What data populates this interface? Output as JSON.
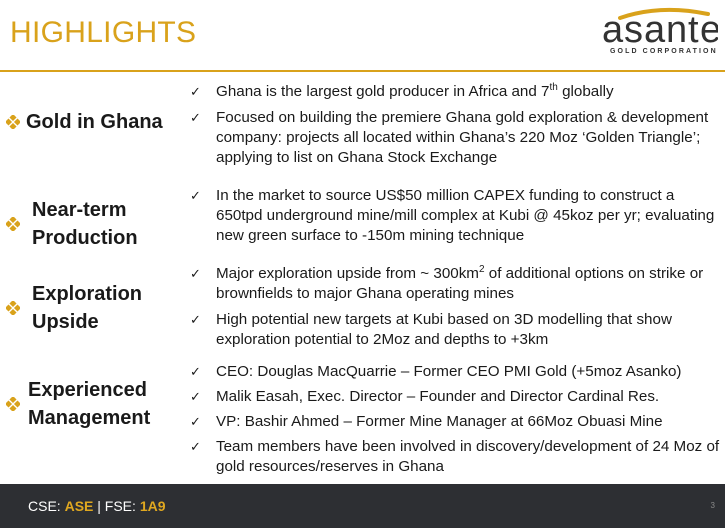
{
  "title": "HIGHLIGHTS",
  "logo": {
    "name": "asante",
    "subtitle": "GOLD CORPORATION"
  },
  "colors": {
    "accent": "#d9a21b",
    "footer_bg": "#2d2f33",
    "diamond": "#d9a21b"
  },
  "sections": [
    {
      "label_lines": [
        "Gold in Ghana"
      ],
      "bullets": [
        {
          "before": "Ghana is the largest gold producer in Africa and 7",
          "sup": "th",
          "after": " globally"
        },
        {
          "before": "Focused on building the premiere Ghana gold exploration & development company: projects all located within Ghana’s 220 Moz ‘Golden Triangle’; applying to list on Ghana Stock Exchange",
          "sup": "",
          "after": ""
        }
      ]
    },
    {
      "label_lines": [
        "Near-term",
        "Production"
      ],
      "bullets": [
        {
          "before": "In the market to source US$50 million CAPEX funding to construct a 650tpd underground mine/mill complex at Kubi @ 45koz per yr; evaluating new green surface to -150m  mining technique",
          "sup": "",
          "after": ""
        }
      ]
    },
    {
      "label_lines": [
        "Exploration",
        "Upside"
      ],
      "bullets": [
        {
          "before": "Major exploration upside from ~ 300km",
          "sup": "2",
          "after": " of additional options on strike or brownfields to major Ghana operating mines"
        },
        {
          "before": "High potential new targets at Kubi based on 3D modelling that show exploration potential to 2Moz  and depths to  +3km",
          "sup": "",
          "after": ""
        }
      ]
    },
    {
      "label_lines": [
        "Experienced",
        "Management"
      ],
      "bullets": [
        {
          "before": "CEO: Douglas MacQuarrie –  Former CEO PMI Gold (+5moz Asanko)",
          "sup": "",
          "after": ""
        },
        {
          "before": "Malik Easah, Exec. Director – Founder and Director Cardinal Res.",
          "sup": "",
          "after": ""
        },
        {
          "before": "VP: Bashir Ahmed – Former Mine Manager at 66Moz Obuasi Mine",
          "sup": "",
          "after": ""
        },
        {
          "before": "Team members have been involved in discovery/development of 24 Moz of gold resources/reserves in Ghana",
          "sup": "",
          "after": ""
        }
      ]
    }
  ],
  "footer": {
    "cse_label": "CSE: ",
    "cse_value": "ASE",
    "separator": " | ",
    "fse_label": "FSE: ",
    "fse_value": "1A9",
    "page_number": "3"
  }
}
